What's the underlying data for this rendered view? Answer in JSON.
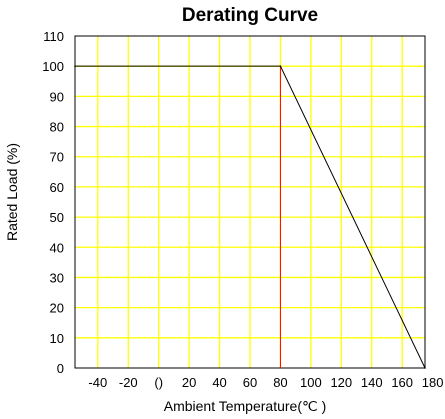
{
  "chart_data": {
    "type": "line",
    "title": "Derating Curve",
    "xlabel": "Ambient Temperature(℃ )",
    "ylabel": "Rated Load (%)",
    "xlim": [
      -55,
      175
    ],
    "ylim": [
      0,
      110
    ],
    "x_ticks": [
      -40,
      -20,
      0,
      20,
      40,
      60,
      80,
      100,
      120,
      140,
      160,
      180
    ],
    "x_tick_labels": [
      "-40",
      "-20",
      "()",
      "20",
      "40",
      "60",
      "80",
      "100",
      "120",
      "140",
      "160",
      "180"
    ],
    "y_ticks": [
      0,
      10,
      20,
      30,
      40,
      50,
      60,
      70,
      80,
      90,
      100,
      110
    ],
    "grid": true,
    "grid_color": "#ffff00",
    "series": [
      {
        "x": [
          -55,
          80,
          175
        ],
        "y": [
          100,
          100,
          0
        ],
        "color": "#000000"
      }
    ],
    "reference_line": {
      "x": 80,
      "color": "#ff0000"
    }
  }
}
